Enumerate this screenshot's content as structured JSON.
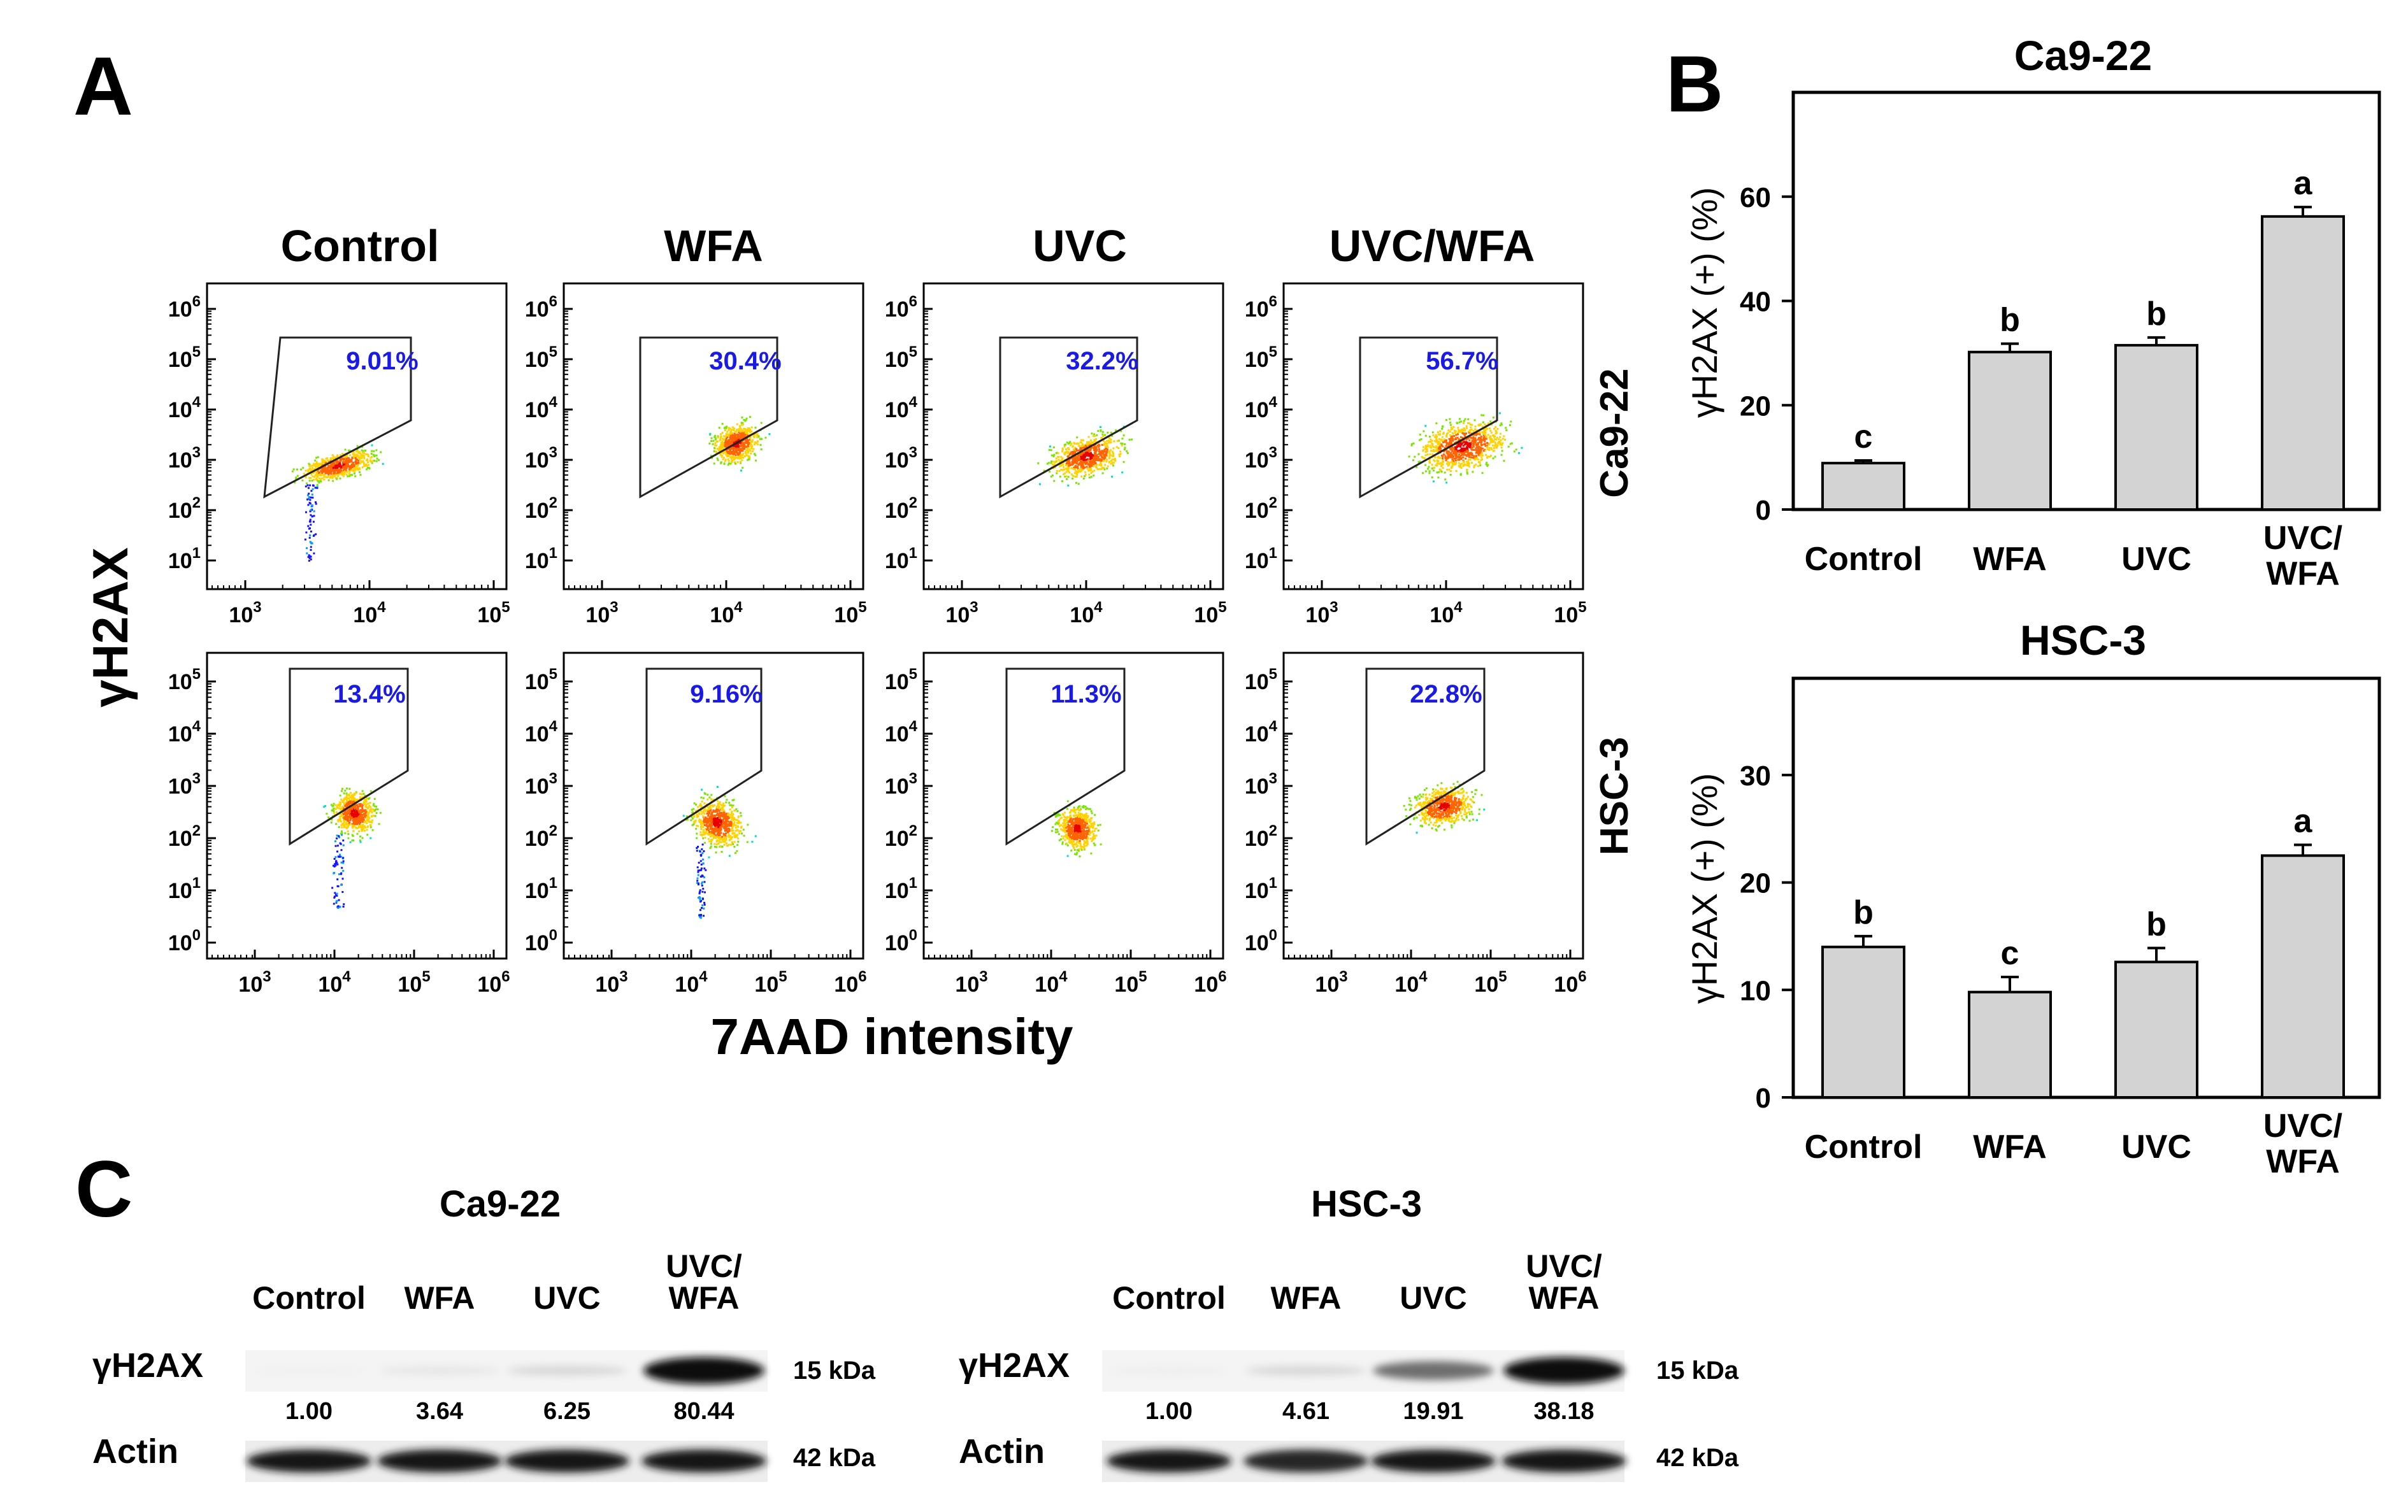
{
  "panel_a": {
    "letter": "A",
    "y_label": "γH2AX",
    "x_label": "7AAD intensity",
    "conditions": [
      "Control",
      "WFA",
      "UVC",
      "UVC/WFA"
    ],
    "cell_lines": [
      "Ca9-22",
      "HSC-3"
    ],
    "gate_percent": {
      "Ca9-22": [
        "9.01%",
        "30.4%",
        "32.2%",
        "56.7%"
      ],
      "HSC-3": [
        "13.4%",
        "9.16%",
        "11.3%",
        "22.8%"
      ]
    },
    "tick_base": "10",
    "ca_y_exponents": [
      "6",
      "5",
      "4",
      "3",
      "2",
      "1"
    ],
    "ca_x_exponents": [
      "3",
      "4",
      "5"
    ],
    "hsc_y_exponents": [
      "5",
      "4",
      "3",
      "2",
      "1",
      "0"
    ],
    "hsc_x_exponents": [
      "3",
      "4",
      "5",
      "6"
    ],
    "colors": {
      "percent_text": "#1a1ae6"
    }
  },
  "panel_b": {
    "letter": "B",
    "charts": [
      {
        "key": "ca922",
        "title": "Ca9-22",
        "ylabel": "γH2AX (+) (%)",
        "ylim": [
          0,
          80
        ],
        "yticks": [
          0,
          20,
          40,
          60
        ],
        "categories": [
          "Control",
          "WFA",
          "UVC",
          "UVC/WFA"
        ],
        "values": [
          8.9,
          30.2,
          31.5,
          56.2
        ],
        "errors": [
          0.5,
          1.6,
          1.5,
          1.8
        ],
        "significance": [
          "c",
          "b",
          "b",
          "a"
        ]
      },
      {
        "key": "hsc3",
        "title": "HSC-3",
        "ylabel": "γH2AX (+) (%)",
        "ylim": [
          0,
          39
        ],
        "yticks": [
          0,
          10,
          20,
          30
        ],
        "categories": [
          "Control",
          "WFA",
          "UVC",
          "UVC/WFA"
        ],
        "values": [
          14.0,
          9.8,
          12.6,
          22.5
        ],
        "errors": [
          1.0,
          1.4,
          1.3,
          1.0
        ],
        "significance": [
          "b",
          "c",
          "b",
          "a"
        ]
      }
    ]
  },
  "chart_data": [
    {
      "type": "bar",
      "title": "Ca9-22",
      "xlabel": "",
      "ylabel": "γH2AX (+) (%)",
      "categories": [
        "Control",
        "WFA",
        "UVC",
        "UVC/WFA"
      ],
      "values": [
        8.9,
        30.2,
        31.5,
        56.2
      ],
      "errors": [
        0.5,
        1.6,
        1.5,
        1.8
      ],
      "significance": [
        "c",
        "b",
        "b",
        "a"
      ],
      "ylim": [
        0,
        80
      ],
      "grid": false
    },
    {
      "type": "bar",
      "title": "HSC-3",
      "xlabel": "",
      "ylabel": "γH2AX (+) (%)",
      "categories": [
        "Control",
        "WFA",
        "UVC",
        "UVC/WFA"
      ],
      "values": [
        14.0,
        9.8,
        12.6,
        22.5
      ],
      "errors": [
        1.0,
        1.4,
        1.3,
        1.0
      ],
      "significance": [
        "b",
        "c",
        "b",
        "a"
      ],
      "ylim": [
        0,
        39
      ],
      "grid": false
    }
  ],
  "panel_c": {
    "letter": "C",
    "blots": [
      {
        "key": "ca922",
        "title": "Ca9-22",
        "lanes": [
          "Control",
          "WFA",
          "UVC",
          "UVC/\nWFA"
        ],
        "protein": "γH2AX",
        "protein_kda": "15 kDa",
        "loading": "Actin",
        "loading_kda": "42 kDa",
        "ratios": [
          "1.00",
          "3.64",
          "6.25",
          "80.44"
        ],
        "band_intensity": [
          0.02,
          0.06,
          0.12,
          0.95
        ],
        "actin_intensity": [
          0.92,
          0.92,
          0.92,
          0.92
        ]
      },
      {
        "key": "hsc3",
        "title": "HSC-3",
        "lanes": [
          "Control",
          "WFA",
          "UVC",
          "UVC/\nWFA"
        ],
        "protein": "γH2AX",
        "protein_kda": "15 kDa",
        "loading": "Actin",
        "loading_kda": "42 kDa",
        "ratios": [
          "1.00",
          "4.61",
          "19.91",
          "38.18"
        ],
        "band_intensity": [
          0.03,
          0.12,
          0.55,
          0.95
        ],
        "actin_intensity": [
          0.92,
          0.85,
          0.92,
          0.92
        ]
      }
    ]
  }
}
